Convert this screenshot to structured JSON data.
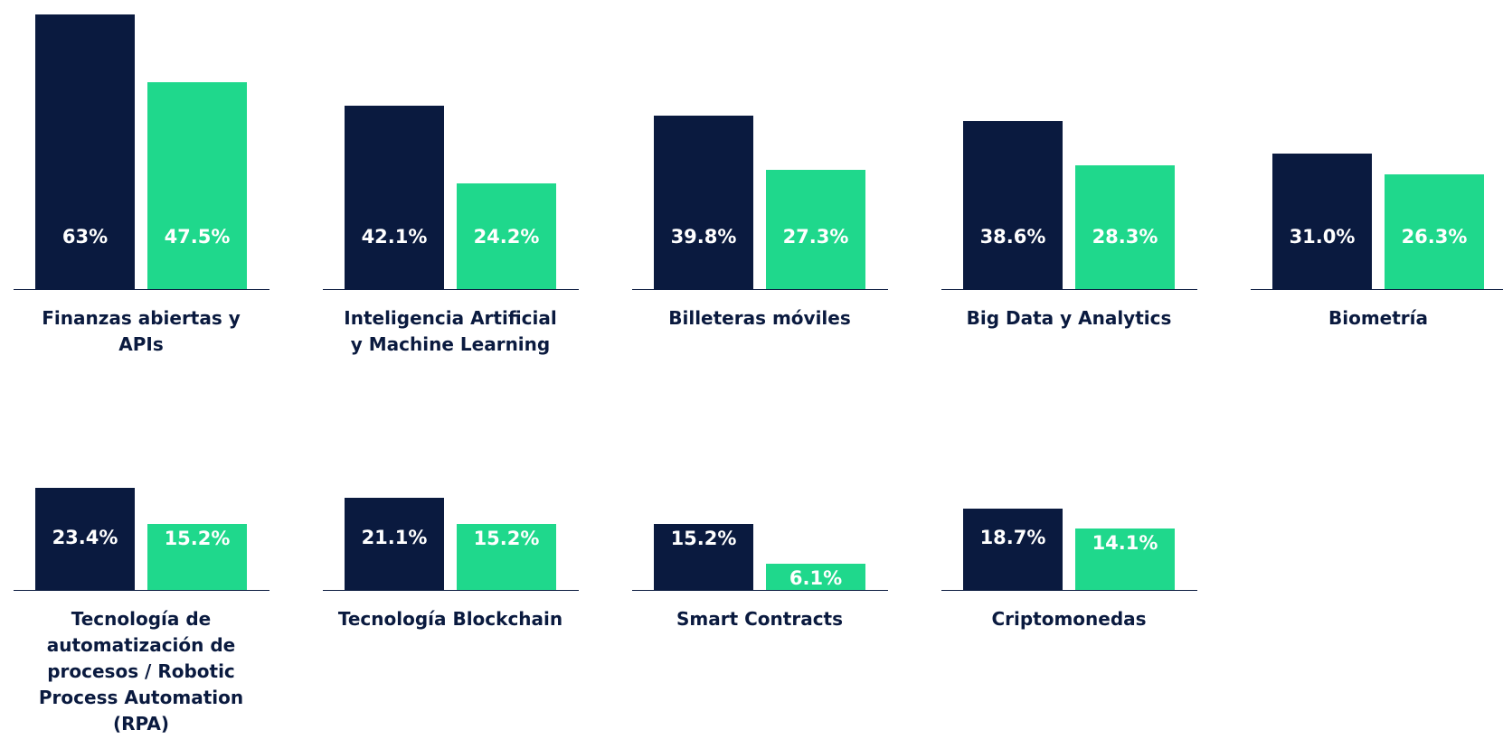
{
  "chart_data": {
    "type": "bar",
    "categories": [
      "Finanzas abiertas y APIs",
      "Inteligencia Artificial y Machine Learning",
      "Billeteras móviles",
      "Big Data y Analytics",
      "Biometría",
      "Tecnología de automatización de procesos / Robotic Process Automation (RPA)",
      "Tecnología Blockchain",
      "Smart Contracts",
      "Criptomonedas"
    ],
    "series": [
      {
        "color": "#0a1a3f",
        "values": [
          63,
          42.1,
          39.8,
          38.6,
          31.0,
          23.4,
          21.1,
          15.2,
          18.7
        ],
        "value_labels": [
          "63%",
          "42.1%",
          "39.8%",
          "38.6%",
          "31.0%",
          "23.4%",
          "21.1%",
          "15.2%",
          "18.7%"
        ]
      },
      {
        "color": "#1fd88c",
        "values": [
          47.5,
          24.2,
          27.3,
          28.3,
          26.3,
          15.2,
          15.2,
          6.1,
          14.1
        ],
        "value_labels": [
          "47.5%",
          "24.2%",
          "27.3%",
          "28.3%",
          "26.3%",
          "15.2%",
          "15.2%",
          "6.1%",
          "14.1%"
        ]
      }
    ],
    "ylim": [
      0,
      63
    ]
  }
}
